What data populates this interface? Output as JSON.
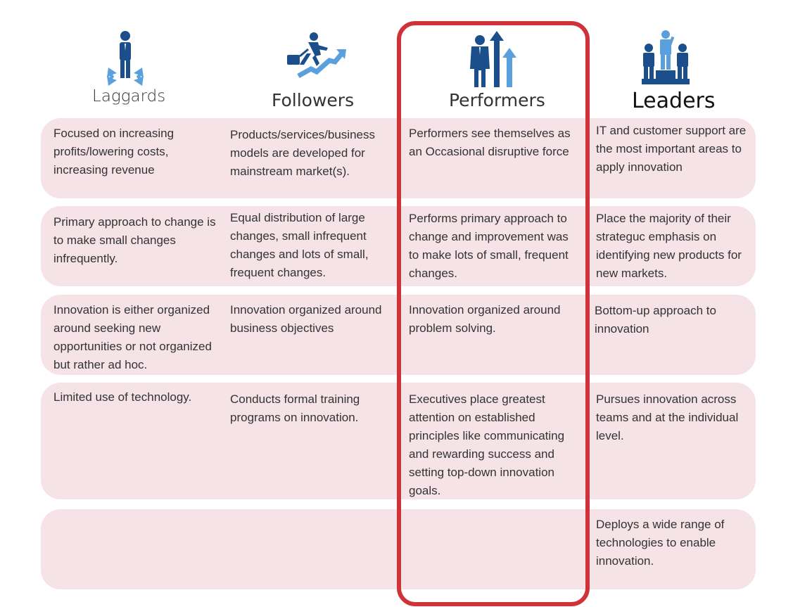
{
  "colors": {
    "band": "#f6e3e8",
    "highlight": "#d0323a",
    "icon_dark": "#1a4f8b",
    "icon_light": "#5aa0dc"
  },
  "columns": [
    {
      "title": "Laggards",
      "icon": "person-with-arrows-icon"
    },
    {
      "title": "Followers",
      "icon": "businessman-running-up-arrow-icon"
    },
    {
      "title": "Performers",
      "icon": "businessman-with-up-arrows-icon"
    },
    {
      "title": "Leaders",
      "icon": "team-on-podium-icon"
    }
  ],
  "highlighted_column": "Performers",
  "rows": [
    [
      "Focused on increasing profits/lowering costs, increasing revenue",
      "Products/services/business models are developed for mainstream market(s).",
      "Performers see themselves as an Occasional disruptive force",
      "IT and customer support are the most important areas to apply innovation"
    ],
    [
      "Primary approach to change is to make small changes infrequently.",
      "Equal distribution of large changes, small infrequent changes and lots of small, frequent changes.",
      "Performs primary approach to change and improvement was to make lots of small, frequent changes.",
      "Place the majority of their strateguc emphasis on identifying new products for new markets."
    ],
    [
      "Innovation is either organized around seeking new opportunities or not organized but rather ad hoc.",
      "Innovation organized around business objectives",
      "Innovation organized around problem solving.",
      "Bottom-up approach to innovation"
    ],
    [
      "Limited use of technology.",
      "Conducts formal training programs on innovation.",
      "Executives place greatest attention on established principles like communicating and rewarding success and setting top-down innovation goals.",
      "Pursues innovation across teams and at the individual level."
    ],
    [
      "",
      "",
      "",
      "Deploys a wide range of technologies to enable innovation."
    ]
  ]
}
